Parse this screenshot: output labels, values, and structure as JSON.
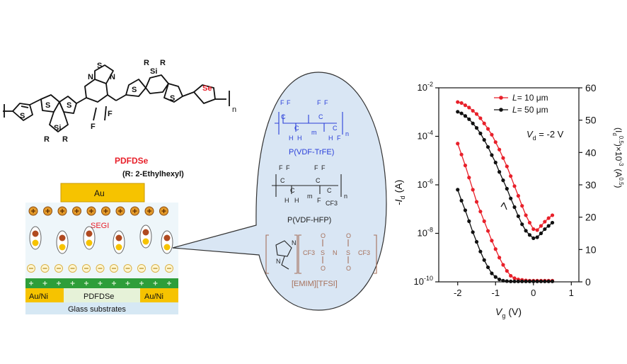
{
  "polymer": {
    "name": "PDFDSe",
    "substituent": "(R: 2-Ethylhexyl)",
    "atoms": {
      "S": "S",
      "N": "N",
      "Si": "Si",
      "Se": "Se",
      "F": "F",
      "R": "R",
      "n": "n"
    }
  },
  "device": {
    "gate": "Au",
    "electrolyte": "SEGI",
    "source": "Au/Ni",
    "drain": "Au/Ni",
    "semiconductor": "PDFDSe",
    "substrate": "Glass substrates"
  },
  "bubble": {
    "polymer1": "P(VDF-TrFE)",
    "polymer2": "P(VDF-HFP)",
    "ionic_liquid": "[EMIM][TFSI]",
    "atoms": {
      "F": "F",
      "H": "H",
      "C": "C",
      "m": "m",
      "n": "n",
      "CF3": "CF3",
      "N": "N",
      "O": "O",
      "S": "S"
    }
  },
  "chart_data": {
    "type": "line",
    "xlabel": "V",
    "xlabel_sub": "g",
    "xlabel_unit": "(V)",
    "ylabel_left": "-I",
    "ylabel_left_sub": "d",
    "ylabel_left_unit": "(A)",
    "ylabel_right": "(I",
    "ylabel_right_sub": "d",
    "ylabel_right_sup": "0.5",
    "ylabel_right_unit": ")×10",
    "ylabel_right_unit_sup": "-3",
    "ylabel_right_unit2": "(A",
    "ylabel_right_unit2_sup": "0.5",
    "ylabel_right_unit3": ")",
    "annotation": "V",
    "annotation_sub": "d",
    "annotation_value": " = -2 V",
    "xlim": [
      -2.5,
      1.2
    ],
    "ylim_left_log": [
      -10,
      -2
    ],
    "ylim_right": [
      0,
      60
    ],
    "x_ticks": [
      "-2",
      "-1",
      "0",
      "1"
    ],
    "x_tick_values": [
      -2,
      -1,
      0,
      1
    ],
    "y_left_ticks": [
      {
        "base": "10",
        "exp": "-2",
        "value": -2
      },
      {
        "base": "10",
        "exp": "-4",
        "value": -4
      },
      {
        "base": "10",
        "exp": "-6",
        "value": -6
      },
      {
        "base": "10",
        "exp": "-8",
        "value": -8
      },
      {
        "base": "10",
        "exp": "-10",
        "value": -10
      }
    ],
    "y_right_ticks": [
      "0",
      "10",
      "20",
      "30",
      "40",
      "50",
      "60"
    ],
    "y_right_tick_values": [
      0,
      10,
      20,
      30,
      40,
      50,
      60
    ],
    "series": [
      {
        "name": "L= 10 μm",
        "legend_italic": "L",
        "legend_rest": "= 10 μm",
        "color": "#e8202a",
        "log_transfer": {
          "x": [
            -2.0,
            -1.9,
            -1.8,
            -1.7,
            -1.6,
            -1.5,
            -1.4,
            -1.3,
            -1.2,
            -1.1,
            -1.0,
            -0.9,
            -0.8,
            -0.7,
            -0.6,
            -0.5,
            -0.4,
            -0.3,
            -0.2,
            -0.1,
            0.0,
            0.1,
            0.2,
            0.3,
            0.4,
            0.5
          ],
          "log10_y": [
            -4.3,
            -4.75,
            -5.2,
            -5.7,
            -6.2,
            -6.7,
            -7.1,
            -7.5,
            -7.9,
            -8.3,
            -8.65,
            -9.0,
            -9.3,
            -9.55,
            -9.75,
            -9.85,
            -9.9,
            -9.92,
            -9.94,
            -9.95,
            -9.95,
            -9.95,
            -9.95,
            -9.95,
            -9.95,
            -9.95
          ]
        },
        "sqrt_curve": {
          "x": [
            -2.0,
            -1.9,
            -1.8,
            -1.7,
            -1.6,
            -1.5,
            -1.4,
            -1.3,
            -1.2,
            -1.1,
            -1.0,
            -0.9,
            -0.8,
            -0.7,
            -0.6,
            -0.5,
            -0.4,
            -0.3,
            -0.2,
            -0.1,
            0.0,
            0.1,
            0.2,
            0.3,
            0.4,
            0.5
          ],
          "y": [
            55.6,
            55.3,
            54.6,
            53.9,
            52.9,
            51.9,
            50.6,
            49.0,
            47.3,
            45.5,
            43.2,
            40.9,
            38.3,
            35.7,
            32.7,
            29.6,
            26.6,
            23.5,
            20.6,
            18.3,
            16.3,
            16.0,
            17.3,
            18.6,
            19.7,
            20.6
          ]
        }
      },
      {
        "name": "L= 50 μm",
        "legend_italic": "L",
        "legend_rest": "= 50 μm",
        "color": "#111111",
        "log_transfer": {
          "x": [
            -2.0,
            -1.9,
            -1.8,
            -1.7,
            -1.6,
            -1.5,
            -1.4,
            -1.3,
            -1.2,
            -1.1,
            -1.0,
            -0.9,
            -0.8,
            -0.7,
            -0.6,
            -0.5,
            -0.4,
            -0.3,
            -0.2,
            -0.1,
            0.0,
            0.1,
            0.2,
            0.3,
            0.4,
            0.5
          ],
          "log10_y": [
            -6.2,
            -6.65,
            -7.05,
            -7.5,
            -7.95,
            -8.35,
            -8.75,
            -9.1,
            -9.4,
            -9.65,
            -9.8,
            -9.9,
            -9.95,
            -9.97,
            -9.98,
            -9.98,
            -9.98,
            -9.98,
            -9.98,
            -9.98,
            -9.98,
            -9.98,
            -9.98,
            -9.98,
            -9.98,
            -9.98
          ]
        },
        "sqrt_curve": {
          "x": [
            -2.0,
            -1.9,
            -1.8,
            -1.7,
            -1.6,
            -1.5,
            -1.4,
            -1.3,
            -1.2,
            -1.1,
            -1.0,
            -0.9,
            -0.8,
            -0.7,
            -0.6,
            -0.5,
            -0.4,
            -0.3,
            -0.2,
            -0.1,
            0.0,
            0.1,
            0.2,
            0.3,
            0.4,
            0.5
          ],
          "y": [
            52.6,
            52.1,
            51.3,
            50.3,
            49.0,
            47.6,
            45.9,
            43.9,
            41.7,
            39.2,
            36.9,
            34.0,
            31.4,
            28.8,
            25.8,
            23.1,
            20.3,
            17.8,
            15.8,
            14.5,
            13.5,
            13.8,
            15.0,
            16.3,
            17.3,
            18.3
          ]
        }
      }
    ]
  }
}
